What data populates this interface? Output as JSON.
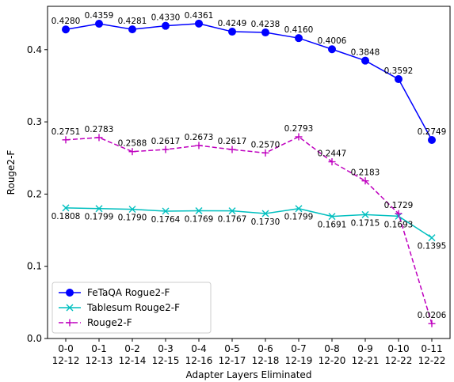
{
  "chart_data": {
    "type": "line",
    "title": "",
    "xlabel": "Adapter Layers Eliminated",
    "ylabel": "Rouge2-F",
    "ylim": [
      0.0,
      0.46
    ],
    "yticks": [
      0.0,
      0.1,
      0.2,
      0.3,
      0.4
    ],
    "ytick_labels": [
      "0.0",
      "0.1",
      "0.2",
      "0.3",
      "0.4"
    ],
    "grid": false,
    "legend_position": "lower-left",
    "categories": [
      [
        "0-0",
        "12-12"
      ],
      [
        "0-1",
        "12-13"
      ],
      [
        "0-2",
        "12-14"
      ],
      [
        "0-3",
        "12-15"
      ],
      [
        "0-4",
        "12-16"
      ],
      [
        "0-5",
        "12-17"
      ],
      [
        "0-6",
        "12-18"
      ],
      [
        "0-7",
        "12-19"
      ],
      [
        "0-8",
        "12-20"
      ],
      [
        "0-9",
        "12-21"
      ],
      [
        "0-10",
        "12-22"
      ],
      [
        "0-11",
        "12-22"
      ]
    ],
    "series": [
      {
        "name": "FeTaQA Rogue2-F",
        "color": "#0000ff",
        "marker": "circle",
        "linestyle": "solid",
        "values": [
          0.428,
          0.4359,
          0.4281,
          0.433,
          0.4361,
          0.4249,
          0.4238,
          0.416,
          0.4006,
          0.3848,
          0.3592,
          0.2749
        ],
        "labels": [
          "0.4280",
          "0.4359",
          "0.4281",
          "0.4330",
          "0.4361",
          "0.4249",
          "0.4238",
          "0.4160",
          "0.4006",
          "0.3848",
          "0.3592",
          "0.2749"
        ],
        "label_position": "above"
      },
      {
        "name": "Tablesum Rouge2-F",
        "color": "#00bfbf",
        "marker": "x",
        "linestyle": "solid",
        "values": [
          0.1808,
          0.1799,
          0.179,
          0.1764,
          0.1769,
          0.1767,
          0.173,
          0.1799,
          0.1691,
          0.1715,
          0.1693,
          0.1395
        ],
        "labels": [
          "0.1808",
          "0.1799",
          "0.1790",
          "0.1764",
          "0.1769",
          "0.1767",
          "0.1730",
          "0.1799",
          "0.1691",
          "0.1715",
          "0.1693",
          "0.1395"
        ],
        "label_position": "below"
      },
      {
        "name": "Rouge2-F",
        "color": "#bf00bf",
        "marker": "plus",
        "linestyle": "dashed",
        "values": [
          0.2751,
          0.2783,
          0.2588,
          0.2617,
          0.2673,
          0.2617,
          0.257,
          0.2793,
          0.2447,
          0.2183,
          0.1729,
          0.0206
        ],
        "labels": [
          "0.2751",
          "0.2783",
          "0.2588",
          "0.2617",
          "0.2673",
          "0.2617",
          "0.2570",
          "0.2793",
          "0.2447",
          "0.2183",
          "0.1729",
          "0.0206"
        ],
        "label_position": "above"
      }
    ]
  }
}
